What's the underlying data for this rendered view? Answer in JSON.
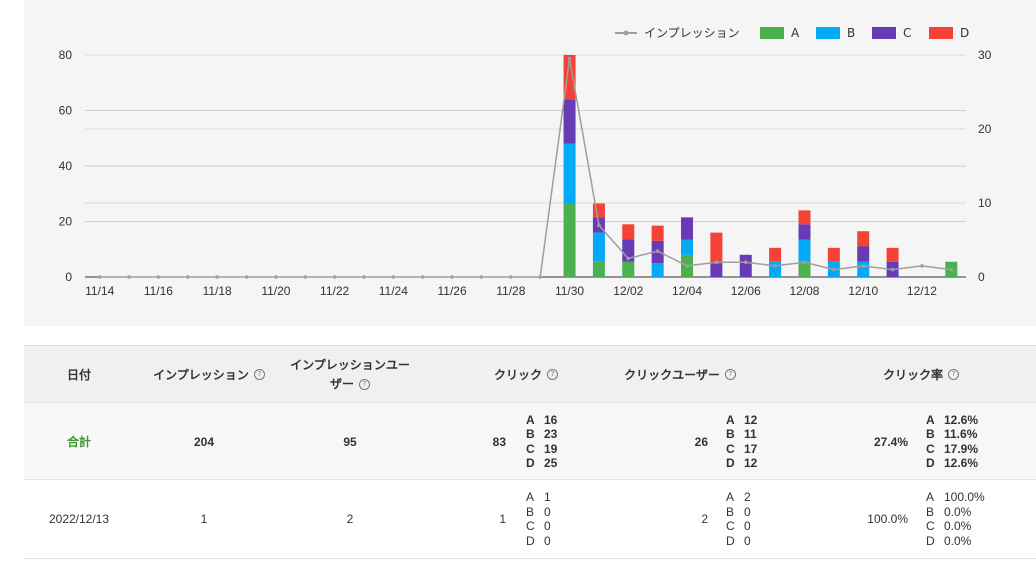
{
  "legend": [
    {
      "label": "インプレッション",
      "color": "#9e9e9e",
      "kind": "line"
    },
    {
      "label": "A",
      "color": "#4caf50",
      "kind": "box"
    },
    {
      "label": "B",
      "color": "#03a9f4",
      "kind": "box"
    },
    {
      "label": "C",
      "color": "#673ab7",
      "kind": "box"
    },
    {
      "label": "D",
      "color": "#f44336",
      "kind": "box"
    }
  ],
  "chart_data": {
    "type": "bar",
    "stacked": true,
    "categories": [
      "11/14",
      "11/15",
      "11/16",
      "11/17",
      "11/18",
      "11/19",
      "11/20",
      "11/21",
      "11/22",
      "11/23",
      "11/24",
      "11/25",
      "11/26",
      "11/27",
      "11/28",
      "11/29",
      "11/30",
      "12/01",
      "12/02",
      "12/03",
      "12/04",
      "12/05",
      "12/06",
      "12/07",
      "12/08",
      "12/09",
      "12/10",
      "12/11",
      "12/12",
      "12/13"
    ],
    "x_tick_labels": [
      "11/14",
      "11/16",
      "11/18",
      "11/20",
      "11/22",
      "11/24",
      "11/26",
      "11/28",
      "11/30",
      "12/02",
      "12/04",
      "12/06",
      "12/08",
      "12/10",
      "12/12"
    ],
    "left_axis": {
      "ylim": [
        0,
        80
      ],
      "ticks": [
        "0",
        "20",
        "40",
        "60",
        "80"
      ]
    },
    "right_axis": {
      "ylim": [
        0,
        30
      ],
      "ticks": [
        "0",
        "10",
        "20",
        "30"
      ]
    },
    "series": [
      {
        "name": "A",
        "color": "#4caf50",
        "axis": "left",
        "values": [
          0,
          0,
          0,
          0,
          0,
          0,
          0,
          0,
          0,
          0,
          0,
          0,
          0,
          0,
          0,
          0,
          26.5,
          5.5,
          5.5,
          0,
          8,
          0,
          0,
          0,
          5.5,
          0,
          0,
          0,
          0,
          5.5
        ]
      },
      {
        "name": "B",
        "color": "#03a9f4",
        "axis": "left",
        "values": [
          0,
          0,
          0,
          0,
          0,
          0,
          0,
          0,
          0,
          0,
          0,
          0,
          0,
          0,
          0,
          0,
          21.5,
          10.5,
          0,
          5,
          5.5,
          0,
          0,
          5.5,
          8,
          5.5,
          5.5,
          0,
          0,
          0
        ]
      },
      {
        "name": "C",
        "color": "#673ab7",
        "axis": "left",
        "values": [
          0,
          0,
          0,
          0,
          0,
          0,
          0,
          0,
          0,
          0,
          0,
          0,
          0,
          0,
          0,
          0,
          16,
          5.5,
          8,
          8,
          8,
          5,
          8,
          0,
          5.5,
          0,
          5.5,
          5.5,
          0,
          0
        ]
      },
      {
        "name": "D",
        "color": "#f44336",
        "axis": "left",
        "values": [
          0,
          0,
          0,
          0,
          0,
          0,
          0,
          0,
          0,
          0,
          0,
          0,
          0,
          0,
          0,
          0,
          16,
          5,
          5.5,
          5.5,
          0,
          11,
          0,
          5,
          5,
          5,
          5.5,
          5,
          0,
          0
        ]
      },
      {
        "name": "インプレッション",
        "color": "#9e9e9e",
        "axis": "right",
        "type": "line",
        "values": [
          0,
          0,
          0,
          0,
          0,
          0,
          0,
          0,
          0,
          0,
          0,
          0,
          0,
          0,
          0,
          0,
          29.5,
          7,
          2.5,
          3.5,
          1.5,
          2,
          2,
          1.5,
          2,
          1,
          1.5,
          1,
          1.5,
          1
        ]
      }
    ]
  },
  "table": {
    "headers": {
      "date": "日付",
      "impressions": "インプレッション",
      "imp_users_line1": "インプレッションユー",
      "imp_users_line2": "ザー",
      "clicks": "クリック",
      "click_users": "クリックユーザー",
      "ctr": "クリック率",
      "help_glyph": "?"
    },
    "total": {
      "label": "合計",
      "impressions": "204",
      "imp_users": "95",
      "clicks": "83",
      "clicks_ab": [
        {
          "k": "A",
          "v": "16"
        },
        {
          "k": "B",
          "v": "23"
        },
        {
          "k": "C",
          "v": "19"
        },
        {
          "k": "D",
          "v": "25"
        }
      ],
      "click_users": "26",
      "click_users_ab": [
        {
          "k": "A",
          "v": "12"
        },
        {
          "k": "B",
          "v": "11"
        },
        {
          "k": "C",
          "v": "17"
        },
        {
          "k": "D",
          "v": "12"
        }
      ],
      "ctr": "27.4%",
      "ctr_ab": [
        {
          "k": "A",
          "v": "12.6%"
        },
        {
          "k": "B",
          "v": "11.6%"
        },
        {
          "k": "C",
          "v": "17.9%"
        },
        {
          "k": "D",
          "v": "12.6%"
        }
      ]
    },
    "rows": [
      {
        "date": "2022/12/13",
        "impressions": "1",
        "imp_users": "2",
        "clicks": "1",
        "clicks_ab": [
          {
            "k": "A",
            "v": "1"
          },
          {
            "k": "B",
            "v": "0"
          },
          {
            "k": "C",
            "v": "0"
          },
          {
            "k": "D",
            "v": "0"
          }
        ],
        "click_users": "2",
        "click_users_ab": [
          {
            "k": "A",
            "v": "2"
          },
          {
            "k": "B",
            "v": "0"
          },
          {
            "k": "C",
            "v": "0"
          },
          {
            "k": "D",
            "v": "0"
          }
        ],
        "ctr": "100.0%",
        "ctr_ab": [
          {
            "k": "A",
            "v": "100.0%"
          },
          {
            "k": "B",
            "v": "0.0%"
          },
          {
            "k": "C",
            "v": "0.0%"
          },
          {
            "k": "D",
            "v": "0.0%"
          }
        ]
      }
    ]
  }
}
